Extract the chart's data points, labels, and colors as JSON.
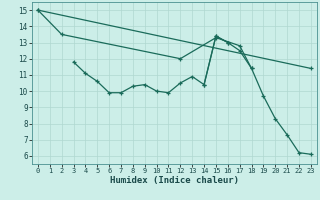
{
  "xlabel": "Humidex (Indice chaleur)",
  "bg_color": "#cceee8",
  "line_color": "#1a6b5a",
  "grid_color": "#b0d8d0",
  "xlim": [
    -0.5,
    23.5
  ],
  "ylim": [
    5.5,
    15.5
  ],
  "xticks": [
    0,
    1,
    2,
    3,
    4,
    5,
    6,
    7,
    8,
    9,
    10,
    11,
    12,
    13,
    14,
    15,
    16,
    17,
    18,
    19,
    20,
    21,
    22,
    23
  ],
  "yticks": [
    6,
    7,
    8,
    9,
    10,
    11,
    12,
    13,
    14,
    15
  ],
  "series": [
    {
      "x": [
        0,
        23
      ],
      "y": [
        15,
        11.4
      ]
    },
    {
      "comment": "Upper curve: 0->15, 2->13.5, 12->12, 15->13.3, 17->12.8, 18->11.4",
      "x": [
        0,
        2,
        12,
        15,
        17,
        18
      ],
      "y": [
        15,
        13.5,
        12.0,
        13.3,
        12.8,
        11.4
      ]
    },
    {
      "comment": "Zigzag middle: 3->11.8, 4->11.1, 5->10.6, 6->9.9, 7->9.9, 8->10.3, 9->10.4, 10->10.0, 11->9.9, 12->10.5, 13->10.9, 14->10.4, 15->13.4, 16->13.0",
      "x": [
        3,
        4,
        5,
        6,
        7,
        8,
        9,
        10,
        11,
        12,
        13,
        14,
        15,
        16
      ],
      "y": [
        11.8,
        11.1,
        10.6,
        9.9,
        9.9,
        10.3,
        10.4,
        10.0,
        9.9,
        10.5,
        10.9,
        10.4,
        13.4,
        13.0
      ]
    },
    {
      "comment": "Right declining: 15->13.4, 16->13.0, 17->12.5, 18->11.4, 19->9.7, 20->8.3, 21->7.3, 22->6.2, 23->6.1",
      "x": [
        14,
        15,
        16,
        17,
        18,
        19,
        20,
        21,
        22,
        23
      ],
      "y": [
        10.4,
        13.4,
        13.0,
        12.5,
        11.4,
        9.7,
        8.3,
        7.3,
        6.2,
        6.1
      ]
    }
  ]
}
